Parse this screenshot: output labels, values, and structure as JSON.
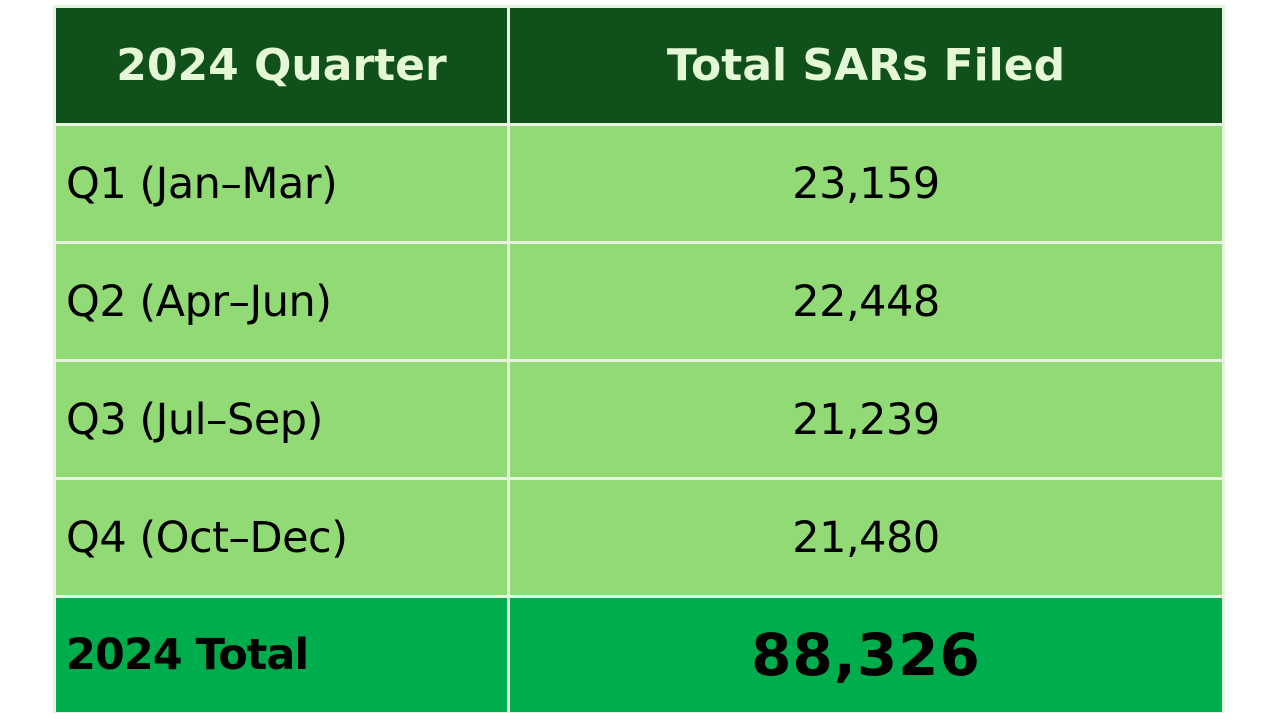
{
  "chart_data": {
    "type": "table",
    "columns": [
      "2024 Quarter",
      "Total SARs Filed"
    ],
    "rows": [
      {
        "quarter": "Q1 (Jan–Mar)",
        "value_text": "23,159",
        "value": 23159
      },
      {
        "quarter": "Q2 (Apr–Jun)",
        "value_text": "22,448",
        "value": 22448
      },
      {
        "quarter": "Q3 (Jul–Sep)",
        "value_text": "21,239",
        "value": 21239
      },
      {
        "quarter": "Q4 (Oct–Dec)",
        "value_text": "21,480",
        "value": 21480
      }
    ],
    "total": {
      "label": "2024 Total",
      "value_text": "88,326",
      "value": 88326
    }
  },
  "colors": {
    "header_bg": "#10501a",
    "header_text": "#e4f7d6",
    "row_bg": "#91da76",
    "total_bg": "#00ad4c",
    "grid": "#e6f4df"
  }
}
